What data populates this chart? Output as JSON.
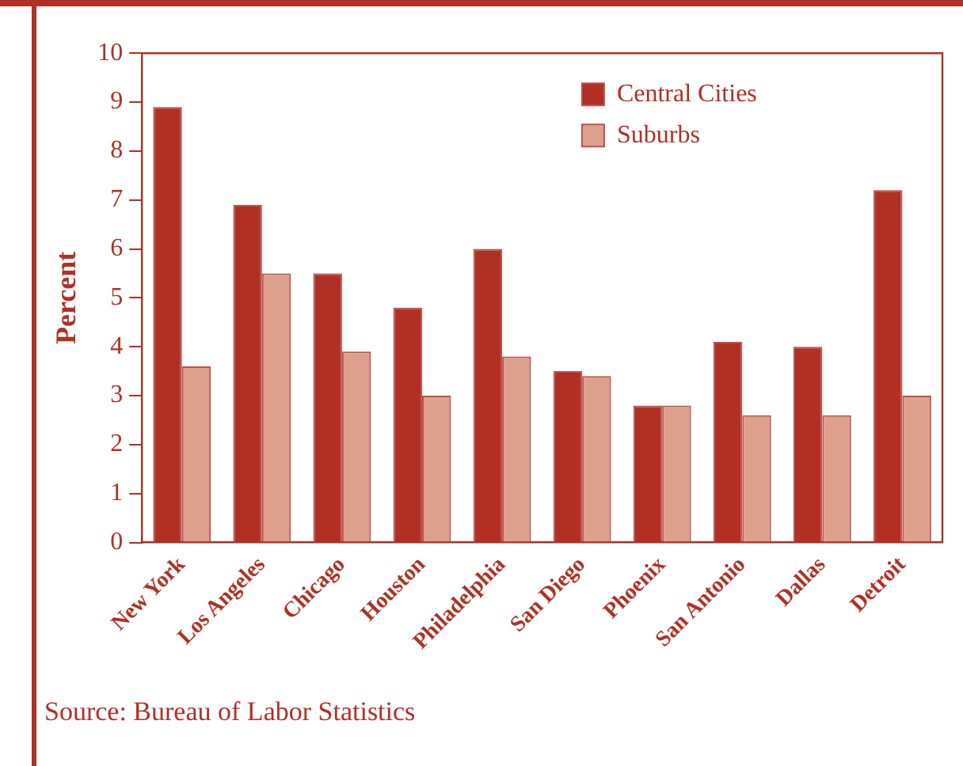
{
  "chart_data": {
    "type": "bar",
    "ylabel": "Percent",
    "categories": [
      "New York",
      "Los Angeles",
      "Chicago",
      "Houston",
      "Philadelphia",
      "San Diego",
      "Phoenix",
      "San Antonio",
      "Dallas",
      "Detroit"
    ],
    "series": [
      {
        "name": "Central Cities",
        "color": "#b03024",
        "values": [
          8.9,
          6.9,
          5.5,
          4.8,
          6.0,
          3.5,
          2.8,
          4.1,
          4.0,
          7.2
        ]
      },
      {
        "name": "Suburbs",
        "color": "#dca08c",
        "values": [
          3.6,
          5.5,
          3.9,
          3.0,
          3.8,
          3.4,
          2.8,
          2.6,
          2.6,
          3.0
        ]
      }
    ],
    "ylim": [
      0,
      10
    ],
    "yticks": [
      0,
      1,
      2,
      3,
      4,
      5,
      6,
      7,
      8,
      9,
      10
    ],
    "grid": false,
    "legend": "top right",
    "annotations": [
      "Source: Bureau of Labor Statistics"
    ]
  }
}
